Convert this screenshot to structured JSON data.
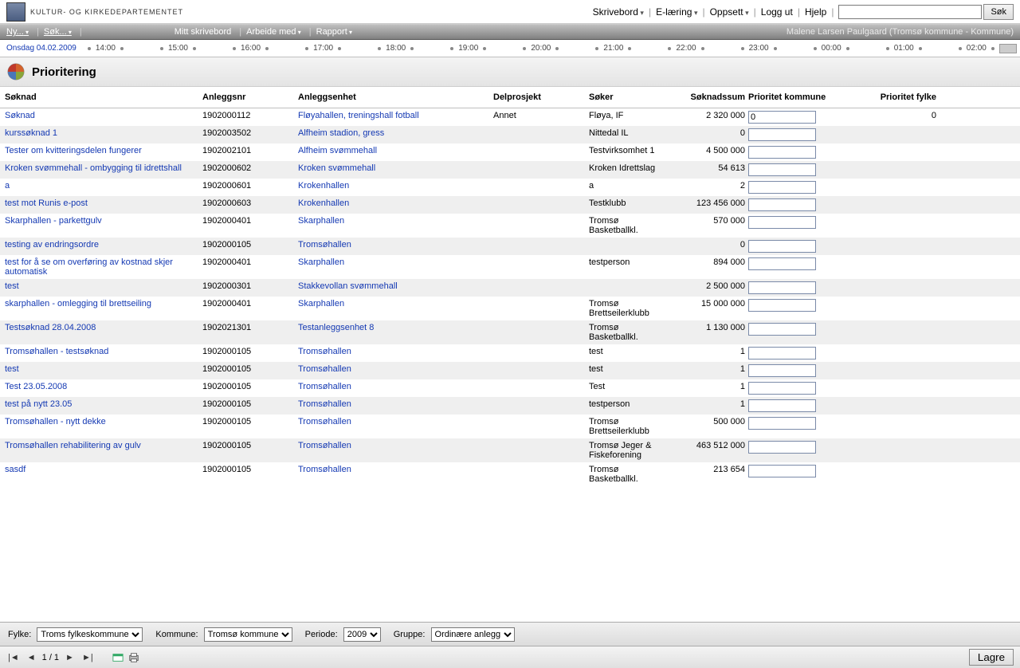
{
  "header": {
    "org_name": "Kultur- og Kirkedepartementet",
    "nav": {
      "skrivebord": "Skrivebord",
      "elaering": "E-læring",
      "oppsett": "Oppsett",
      "loggut": "Logg ut",
      "hjelp": "Hjelp",
      "sok_btn": "Søk"
    }
  },
  "menubar": {
    "ny": "Ny...",
    "sok": "Søk...",
    "mitt": "Mitt skrivebord",
    "arbeide": "Arbeide med",
    "rapport": "Rapport",
    "user": "Malene Larsen Paulgaard (Tromsø kommune - Kommune)"
  },
  "timeline": {
    "date": "Onsdag 04.02.2009",
    "hours": [
      "14:00",
      "15:00",
      "16:00",
      "17:00",
      "18:00",
      "19:00",
      "20:00",
      "21:00",
      "22:00",
      "23:00",
      "00:00",
      "01:00",
      "02:00"
    ]
  },
  "section_title": "Prioritering",
  "columns": {
    "soknad": "Søknad",
    "anleggsnr": "Anleggsnr",
    "anleggsenhet": "Anleggsenhet",
    "delprosjekt": "Delprosjekt",
    "soker": "Søker",
    "sum": "Søknadssum",
    "pri_kommune": "Prioritet kommune",
    "pri_fylke": "Prioritet fylke"
  },
  "rows": [
    {
      "soknad": "Søknad",
      "nr": "1902000112",
      "enhet": "Fløyahallen, treningshall fotball",
      "del": "Annet",
      "soker": "Fløya, IF",
      "sum": "2 320 000",
      "pri": "0",
      "fylke": "0"
    },
    {
      "soknad": "kurssøknad 1",
      "nr": "1902003502",
      "enhet": "Alfheim stadion, gress",
      "del": "",
      "soker": "Nittedal IL",
      "sum": "0",
      "pri": "",
      "fylke": ""
    },
    {
      "soknad": "Tester om kvitteringsdelen fungerer",
      "nr": "1902002101",
      "enhet": "Alfheim svømmehall",
      "del": "",
      "soker": "Testvirksomhet 1",
      "sum": "4 500 000",
      "pri": "",
      "fylke": ""
    },
    {
      "soknad": "Kroken svømmehall - ombygging til idrettshall",
      "nr": "1902000602",
      "enhet": "Kroken svømmehall",
      "del": "",
      "soker": "Kroken Idrettslag",
      "sum": "54 613",
      "pri": "",
      "fylke": ""
    },
    {
      "soknad": "a",
      "nr": "1902000601",
      "enhet": "Krokenhallen",
      "del": "",
      "soker": "a",
      "sum": "2",
      "pri": "",
      "fylke": ""
    },
    {
      "soknad": "test mot Runis e-post",
      "nr": "1902000603",
      "enhet": "Krokenhallen",
      "del": "",
      "soker": "Testklubb",
      "sum": "123 456 000",
      "pri": "",
      "fylke": ""
    },
    {
      "soknad": "Skarphallen - parkettgulv",
      "nr": "1902000401",
      "enhet": "Skarphallen",
      "del": "",
      "soker": "Tromsø Basketballkl.",
      "sum": "570 000",
      "pri": "",
      "fylke": ""
    },
    {
      "soknad": "testing av endringsordre",
      "nr": "1902000105",
      "enhet": "Tromsøhallen",
      "del": "",
      "soker": "",
      "sum": "0",
      "pri": "",
      "fylke": ""
    },
    {
      "soknad": "test for å se om overføring av kostnad skjer automatisk",
      "nr": "1902000401",
      "enhet": "Skarphallen",
      "del": "",
      "soker": "testperson",
      "sum": "894 000",
      "pri": "",
      "fylke": ""
    },
    {
      "soknad": "test",
      "nr": "1902000301",
      "enhet": "Stakkevollan svømmehall",
      "del": "",
      "soker": "",
      "sum": "2 500 000",
      "pri": "",
      "fylke": ""
    },
    {
      "soknad": "skarphallen - omlegging til brettseiling",
      "nr": "1902000401",
      "enhet": "Skarphallen",
      "del": "",
      "soker": "Tromsø Brettseilerklubb",
      "sum": "15 000 000",
      "pri": "",
      "fylke": ""
    },
    {
      "soknad": "Testsøknad 28.04.2008",
      "nr": "1902021301",
      "enhet": "Testanleggsenhet 8",
      "del": "",
      "soker": "Tromsø Basketballkl.",
      "sum": "1 130 000",
      "pri": "",
      "fylke": ""
    },
    {
      "soknad": "Tromsøhallen - testsøknad",
      "nr": "1902000105",
      "enhet": "Tromsøhallen",
      "del": "",
      "soker": "test",
      "sum": "1",
      "pri": "",
      "fylke": ""
    },
    {
      "soknad": "test",
      "nr": "1902000105",
      "enhet": "Tromsøhallen",
      "del": "",
      "soker": "test",
      "sum": "1",
      "pri": "",
      "fylke": ""
    },
    {
      "soknad": "Test 23.05.2008",
      "nr": "1902000105",
      "enhet": "Tromsøhallen",
      "del": "",
      "soker": "Test",
      "sum": "1",
      "pri": "",
      "fylke": ""
    },
    {
      "soknad": "test på nytt 23.05",
      "nr": "1902000105",
      "enhet": "Tromsøhallen",
      "del": "",
      "soker": "testperson",
      "sum": "1",
      "pri": "",
      "fylke": ""
    },
    {
      "soknad": "Tromsøhallen - nytt dekke",
      "nr": "1902000105",
      "enhet": "Tromsøhallen",
      "del": "",
      "soker": "Tromsø Brettseilerklubb",
      "sum": "500 000",
      "pri": "",
      "fylke": ""
    },
    {
      "soknad": "Tromsøhallen rehabilitering av gulv",
      "nr": "1902000105",
      "enhet": "Tromsøhallen",
      "del": "",
      "soker": "Tromsø Jeger & Fiskeforening",
      "sum": "463 512 000",
      "pri": "",
      "fylke": ""
    },
    {
      "soknad": "sasdf",
      "nr": "1902000105",
      "enhet": "Tromsøhallen",
      "del": "",
      "soker": "Tromsø Basketballkl.",
      "sum": "213 654",
      "pri": "",
      "fylke": ""
    }
  ],
  "filters": {
    "fylke_label": "Fylke:",
    "fylke_value": "Troms fylkeskommune",
    "kommune_label": "Kommune:",
    "kommune_value": "Tromsø kommune",
    "periode_label": "Periode:",
    "periode_value": "2009",
    "gruppe_label": "Gruppe:",
    "gruppe_value": "Ordinære anlegg"
  },
  "footer": {
    "page": "1 / 1",
    "save": "Lagre"
  }
}
